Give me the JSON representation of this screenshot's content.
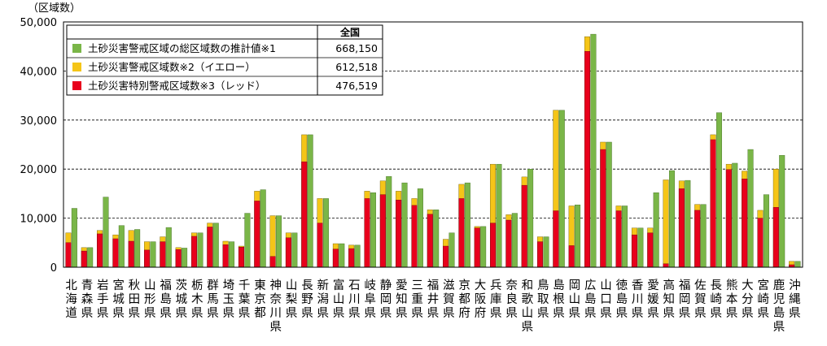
{
  "chart_data": {
    "type": "bar",
    "unit_label": "（区域数）",
    "ylim": [
      0,
      50000
    ],
    "y_ticks": [
      "0",
      "10,000",
      "20,000",
      "30,000",
      "40,000",
      "50,000"
    ],
    "grid": "horizontal dashed",
    "categories": [
      "北海道",
      "青森県",
      "岩手県",
      "宮城県",
      "秋田県",
      "山形県",
      "福島県",
      "茨城県",
      "栃木県",
      "群馬県",
      "埼玉県",
      "千葉県",
      "東京都",
      "神奈川県",
      "山梨県",
      "長野県",
      "新潟県",
      "富山県",
      "石川県",
      "岐阜県",
      "静岡県",
      "愛知県",
      "三重県",
      "福井県",
      "滋賀県",
      "京都府",
      "大阪府",
      "兵庫県",
      "奈良県",
      "和歌山県",
      "鳥取県",
      "島根県",
      "岡山県",
      "広島県",
      "山口県",
      "徳島県",
      "香川県",
      "愛媛県",
      "高知県",
      "福岡県",
      "佐賀県",
      "長崎県",
      "熊本県",
      "大分県",
      "宮崎県",
      "鹿児島県",
      "沖縄県"
    ],
    "legend": {
      "header": "全国",
      "items": [
        {
          "name": "土砂災害警戒区域の総区域数の推計値※1",
          "total": "668,150",
          "color": "#7ab648"
        },
        {
          "name": "土砂災害警戒区域数※2（イエロー）",
          "total": "612,518",
          "color": "#f5c518"
        },
        {
          "name": "土砂災害特別警戒区域数※3（レッド）",
          "total": "476,519",
          "color": "#e8001c"
        }
      ]
    },
    "series": [
      {
        "name": "土砂災害特別警戒区域数※3（レッド）",
        "color": "#e8001c",
        "values": [
          5000,
          3300,
          6800,
          5800,
          5300,
          3500,
          5200,
          3600,
          6300,
          8200,
          4600,
          4100,
          13500,
          2200,
          6000,
          21500,
          9000,
          3700,
          3800,
          14000,
          14800,
          13700,
          12600,
          10800,
          4300,
          14000,
          8000,
          9000,
          9600,
          16700,
          5200,
          11500,
          4400,
          44000,
          24000,
          11500,
          6600,
          7000,
          700,
          16000,
          11600,
          26000,
          19900,
          18000,
          10000,
          12200,
          500
        ]
      },
      {
        "name": "土砂災害警戒区域数※2（イエロー）",
        "color": "#f5c518",
        "values": [
          7000,
          4000,
          7500,
          6600,
          7500,
          5200,
          6200,
          4000,
          7000,
          9000,
          5300,
          4300,
          15500,
          10500,
          7000,
          27000,
          14000,
          4800,
          4500,
          15500,
          17600,
          15500,
          14000,
          11700,
          5700,
          16900,
          8300,
          21000,
          10700,
          18400,
          6200,
          32000,
          12500,
          47000,
          25500,
          12500,
          8000,
          8000,
          17800,
          17600,
          12800,
          27000,
          21000,
          19600,
          11600,
          20000,
          1200
        ]
      },
      {
        "name": "土砂災害警戒区域の総区域数の推計値※1",
        "color": "#7ab648",
        "values": [
          12000,
          4000,
          14300,
          8500,
          7700,
          5200,
          8100,
          3900,
          7000,
          9000,
          5200,
          11000,
          15800,
          10500,
          7000,
          27000,
          14000,
          4800,
          4500,
          15200,
          18500,
          17200,
          16000,
          11700,
          7000,
          17200,
          8300,
          21000,
          11000,
          20000,
          6200,
          32000,
          12700,
          47500,
          25500,
          12500,
          8000,
          15200,
          19700,
          17700,
          12800,
          31500,
          21200,
          24000,
          14800,
          22800,
          1200
        ]
      }
    ]
  }
}
